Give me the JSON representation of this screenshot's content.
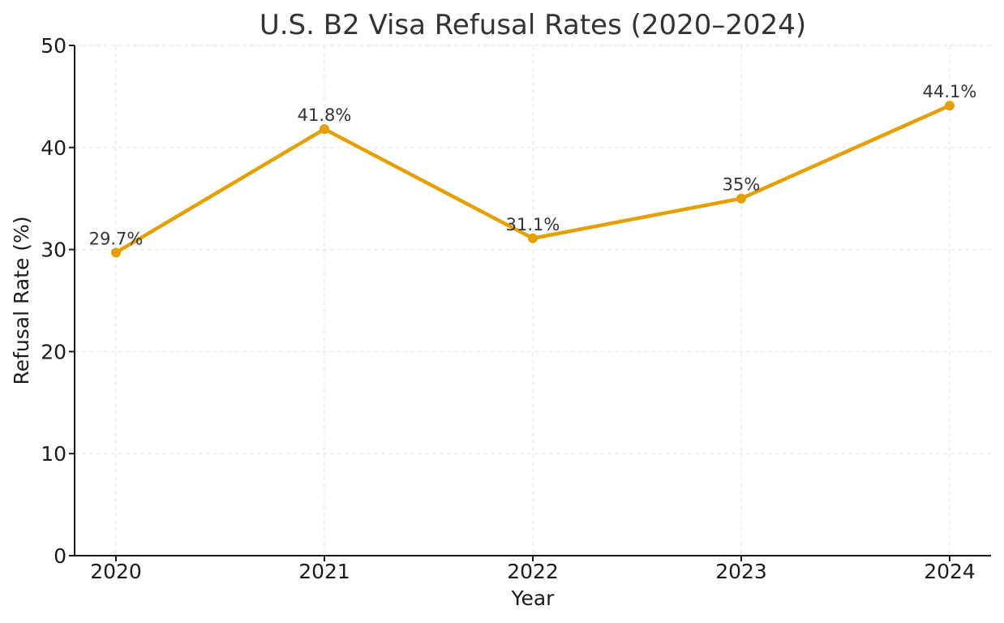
{
  "chart_data": {
    "type": "line",
    "title": "U.S. B2 Visa Refusal Rates (2020–2024)",
    "xlabel": "Year",
    "ylabel": "Refusal Rate (%)",
    "categories": [
      "2020",
      "2021",
      "2022",
      "2023",
      "2024"
    ],
    "series": [
      {
        "values": [
          29.7,
          41.8,
          31.1,
          35.0,
          44.1
        ],
        "color": "#E69F00"
      }
    ],
    "data_labels": [
      "29.7%",
      "41.8%",
      "31.1%",
      "35%",
      "44.1%"
    ],
    "ylim": [
      0,
      50
    ],
    "yticks": [
      0,
      10,
      20,
      30,
      40,
      50
    ],
    "grid": true,
    "legend": "none"
  }
}
